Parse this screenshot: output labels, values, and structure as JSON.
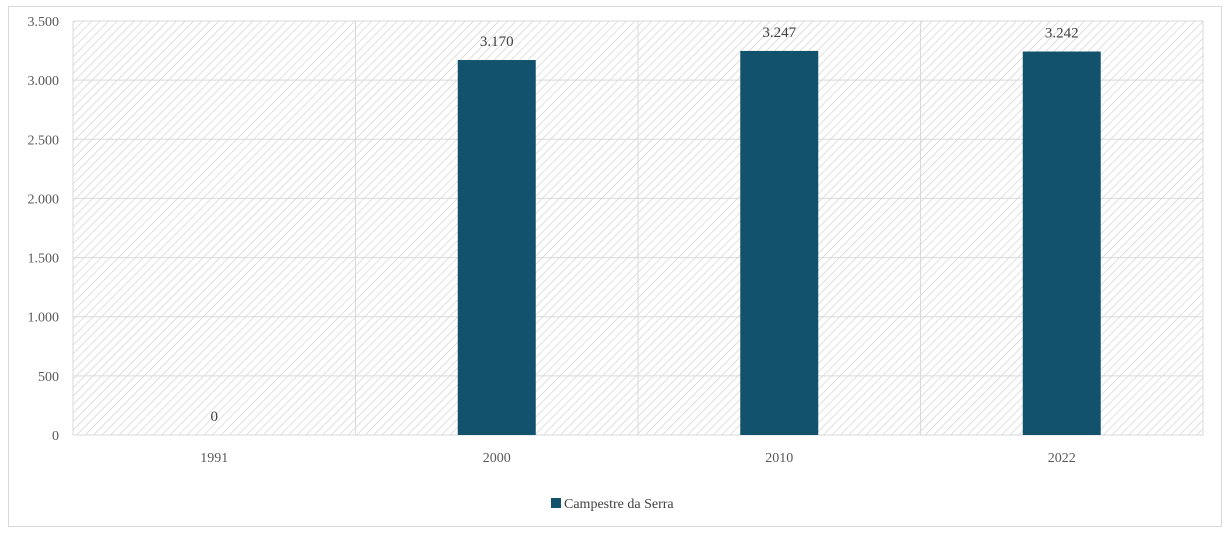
{
  "chart_data": {
    "type": "bar",
    "title": "",
    "xlabel": "",
    "ylabel": "",
    "categories": [
      "1991",
      "2000",
      "2010",
      "2022"
    ],
    "series": [
      {
        "name": "Campestre da Serra",
        "values": [
          0,
          3170,
          3247,
          3242
        ],
        "value_labels": [
          "0",
          "3.170",
          "3.247",
          "3.242"
        ],
        "color": "#12526c"
      }
    ],
    "ylim": [
      0,
      3500
    ],
    "y_ticks": [
      0,
      500,
      1000,
      1500,
      2000,
      2500,
      3000,
      3500
    ],
    "y_tick_labels": [
      "0",
      "500",
      "1.000",
      "1.500",
      "2.000",
      "2.500",
      "3.000",
      "3.500"
    ],
    "grid": true,
    "plot_background": "diagonal-hatch",
    "legend_position": "bottom"
  },
  "colors": {
    "bar": "#12526c",
    "grid": "#d9d9d9",
    "hatch": "#cfcfcf",
    "text": "#595959"
  }
}
